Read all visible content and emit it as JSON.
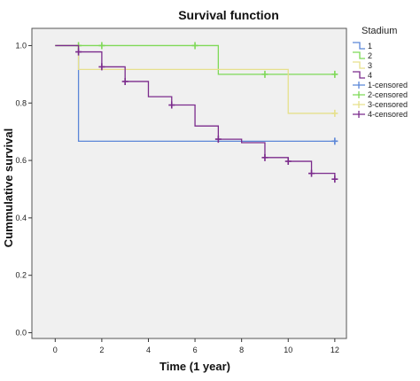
{
  "chart_data": {
    "type": "line",
    "title": "Survival function",
    "xlabel": "Time (1 year)",
    "ylabel": "Cummulative survival",
    "xlim": [
      -1,
      12.5
    ],
    "ylim": [
      -0.02,
      1.06
    ],
    "x_ticks": [
      "0",
      "2",
      "4",
      "6",
      "8",
      "10",
      "12"
    ],
    "y_ticks": [
      "0.0",
      "0.2",
      "0.4",
      "0.6",
      "0.8",
      "1.0"
    ],
    "grid": false,
    "legend_title": "Stadium",
    "legend_position": "right",
    "series": [
      {
        "name": "1",
        "color": "#5b86d8",
        "steps": [
          [
            0,
            1.0
          ],
          [
            1,
            0.667
          ],
          [
            12,
            0.667
          ]
        ],
        "censored": [
          [
            12,
            0.667
          ]
        ]
      },
      {
        "name": "2",
        "color": "#7ed957",
        "steps": [
          [
            0,
            1.0
          ],
          [
            7,
            0.9
          ],
          [
            12,
            0.9
          ]
        ],
        "censored": [
          [
            1,
            1.0
          ],
          [
            2,
            1.0
          ],
          [
            6,
            1.0
          ],
          [
            9,
            0.9
          ],
          [
            12,
            0.9
          ]
        ]
      },
      {
        "name": "3",
        "color": "#e6e08c",
        "steps": [
          [
            0,
            1.0
          ],
          [
            1,
            0.917
          ],
          [
            10,
            0.764
          ],
          [
            12,
            0.764
          ]
        ],
        "censored": [
          [
            12,
            0.764
          ]
        ]
      },
      {
        "name": "4",
        "color": "#7b2b8c",
        "steps": [
          [
            0,
            1.0
          ],
          [
            1,
            0.978
          ],
          [
            2,
            0.926
          ],
          [
            3,
            0.875
          ],
          [
            4,
            0.822
          ],
          [
            5,
            0.793
          ],
          [
            6,
            0.72
          ],
          [
            7,
            0.674
          ],
          [
            8,
            0.662
          ],
          [
            9,
            0.61
          ],
          [
            10,
            0.597
          ],
          [
            11,
            0.555
          ],
          [
            12,
            0.535
          ]
        ],
        "censored": [
          [
            1,
            0.978
          ],
          [
            2,
            0.926
          ],
          [
            3,
            0.875
          ],
          [
            5,
            0.793
          ],
          [
            7,
            0.674
          ],
          [
            9,
            0.61
          ],
          [
            10,
            0.597
          ],
          [
            11,
            0.555
          ],
          [
            12,
            0.535
          ]
        ]
      }
    ],
    "legend": [
      {
        "label": "1",
        "color": "#5b86d8",
        "kind": "step"
      },
      {
        "label": "2",
        "color": "#7ed957",
        "kind": "step"
      },
      {
        "label": "3",
        "color": "#e6e08c",
        "kind": "step"
      },
      {
        "label": "4",
        "color": "#7b2b8c",
        "kind": "step"
      },
      {
        "label": "1-censored",
        "color": "#5b86d8",
        "kind": "plus"
      },
      {
        "label": "2-censored",
        "color": "#7ed957",
        "kind": "plus"
      },
      {
        "label": "3-censored",
        "color": "#e6e08c",
        "kind": "plus"
      },
      {
        "label": "4-censored",
        "color": "#7b2b8c",
        "kind": "plus"
      }
    ]
  }
}
